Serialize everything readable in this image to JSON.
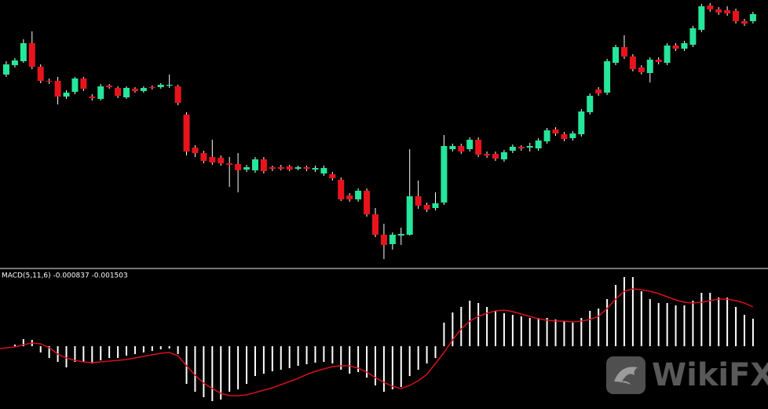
{
  "watermark": "WikiFX",
  "chart_data": [
    {
      "type": "candlestick",
      "ylim": [
        0,
        340
      ],
      "up_color": "#25e69a",
      "down_color": "#e8141c",
      "wick_color": "#ffffff",
      "open": [
        245,
        257,
        262,
        285,
        255,
        237,
        237,
        217,
        223,
        240,
        217,
        214,
        231,
        228,
        216,
        227,
        224,
        229,
        229,
        231,
        230,
        194,
        152,
        145,
        140,
        139,
        132,
        131,
        124,
        123,
        137,
        127,
        127,
        128,
        125,
        127,
        124,
        119,
        118,
        111,
        91,
        86,
        97,
        67,
        41,
        29,
        40,
        41,
        90,
        79,
        75,
        82,
        150,
        154,
        150,
        162,
        144,
        144,
        137,
        148,
        153,
        152,
        151,
        160,
        175,
        169,
        164,
        169,
        197,
        226,
        222,
        260,
        280,
        268,
        254,
        247,
        264,
        260,
        282,
        278,
        283,
        302,
        333,
        328,
        327,
        326,
        313,
        313
      ],
      "high": [
        262,
        266,
        290,
        300,
        258,
        240,
        242,
        225,
        242,
        242,
        220,
        233,
        233,
        230,
        230,
        229,
        230,
        231,
        234,
        245,
        232,
        197,
        155,
        148,
        162,
        142,
        140,
        145,
        130,
        140,
        140,
        129,
        130,
        130,
        129,
        129,
        129,
        129,
        121,
        114,
        94,
        100,
        100,
        75,
        55,
        44,
        50,
        150,
        110,
        82,
        95,
        168,
        157,
        157,
        165,
        165,
        147,
        147,
        149,
        156,
        155,
        158,
        164,
        177,
        178,
        172,
        173,
        201,
        221,
        229,
        265,
        283,
        295,
        271,
        257,
        267,
        267,
        285,
        285,
        288,
        307,
        335,
        336,
        331,
        332,
        329,
        316,
        325
      ],
      "low": [
        242,
        254,
        260,
        252,
        234,
        233,
        207,
        214,
        220,
        224,
        212,
        212,
        227,
        215,
        214,
        222,
        222,
        226,
        227,
        228,
        206,
        142,
        140,
        132,
        130,
        129,
        102,
        95,
        121,
        120,
        119,
        122,
        123,
        122,
        123,
        122,
        121,
        116,
        110,
        84,
        83,
        83,
        64,
        38,
        10,
        22,
        28,
        40,
        74,
        70,
        72,
        79,
        147,
        144,
        147,
        140,
        139,
        135,
        134,
        145,
        148,
        147,
        148,
        157,
        167,
        160,
        161,
        166,
        194,
        218,
        219,
        257,
        265,
        249,
        245,
        235,
        258,
        257,
        275,
        275,
        280,
        299,
        325,
        321,
        320,
        310,
        307,
        310
      ],
      "close": [
        258,
        263,
        285,
        255,
        237,
        236,
        217,
        222,
        240,
        227,
        215,
        230,
        229,
        218,
        228,
        224,
        228,
        228,
        232,
        232,
        209,
        147,
        145,
        135,
        133,
        132,
        130,
        123,
        127,
        137,
        122,
        125,
        125,
        124,
        127,
        125,
        126,
        126,
        113,
        86,
        86,
        97,
        67,
        41,
        28,
        41,
        42,
        90,
        78,
        73,
        81,
        154,
        154,
        147,
        162,
        143,
        142,
        138,
        146,
        153,
        151,
        154,
        161,
        174,
        170,
        163,
        170,
        198,
        218,
        221,
        262,
        280,
        268,
        252,
        248,
        264,
        261,
        282,
        278,
        285,
        304,
        332,
        328,
        324,
        323,
        313,
        310,
        322
      ]
    },
    {
      "type": "macd",
      "title": "MACD(5,11,6) -0.000837 -0.001503",
      "ylim": [
        -80,
        98
      ],
      "histogram_color": "#ffffff",
      "signal_color": "#d4121c",
      "separator_color": "#9a9a9a",
      "histogram": [
        0,
        2,
        9,
        8,
        -8,
        -15,
        -20,
        -27,
        -20,
        -20,
        -22,
        -18,
        -15,
        -15,
        -12,
        -10,
        -8,
        -6,
        -4,
        -3,
        -10,
        -48,
        -58,
        -65,
        -70,
        -68,
        -58,
        -55,
        -48,
        -38,
        -35,
        -32,
        -30,
        -28,
        -25,
        -23,
        -21,
        -20,
        -22,
        -30,
        -35,
        -33,
        -40,
        -50,
        -58,
        -55,
        -52,
        -38,
        -30,
        -22,
        -15,
        30,
        43,
        50,
        58,
        55,
        50,
        45,
        42,
        40,
        38,
        36,
        36,
        36,
        34,
        32,
        30,
        36,
        45,
        48,
        60,
        78,
        88,
        88,
        70,
        60,
        55,
        55,
        52,
        52,
        58,
        68,
        68,
        62,
        62,
        50,
        40,
        35
      ],
      "signal": [
        -3,
        -1,
        2,
        4,
        3,
        -2,
        -10,
        -15,
        -18,
        -20,
        -21,
        -20,
        -19,
        -18,
        -17,
        -15,
        -13,
        -11,
        -9,
        -8,
        -12,
        -25,
        -37,
        -47,
        -54,
        -60,
        -63,
        -63,
        -62,
        -59,
        -56,
        -53,
        -49,
        -45,
        -41,
        -36,
        -32,
        -29,
        -26,
        -25,
        -25,
        -28,
        -33,
        -40,
        -46,
        -51,
        -54,
        -50,
        -44,
        -36,
        -22,
        -8,
        8,
        22,
        32,
        38,
        42,
        45,
        46,
        44,
        41,
        38,
        35,
        33,
        32,
        32,
        31,
        32,
        34,
        38,
        48,
        60,
        70,
        73,
        72,
        70,
        67,
        63,
        59,
        56,
        55,
        56,
        58,
        60,
        60,
        58,
        55,
        50
      ]
    }
  ]
}
